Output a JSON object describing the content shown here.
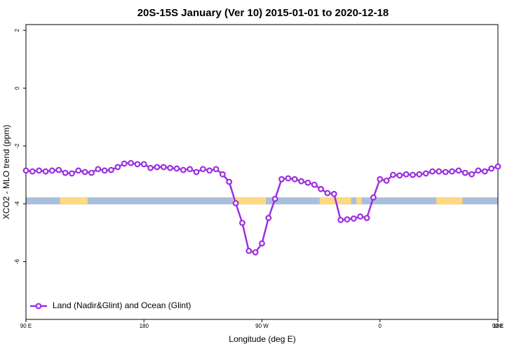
{
  "chart_data": {
    "type": "line",
    "title": "20S-15S January (Ver 10)   2015-01-01 to 2020-12-18",
    "x_label": "Longitude (deg E)",
    "y_label": "XCO2 - MLO trend (ppm)",
    "xlim": [
      90,
      450
    ],
    "xticks": [
      {
        "value": 90,
        "label": "90 E"
      },
      180,
      {
        "value": 270,
        "label": "90 W"
      },
      {
        "value": 360,
        "label": "0"
      },
      {
        "value": 450,
        "label": "90 E"
      },
      {
        "value": 540,
        "label": "180"
      }
    ],
    "ylim": [
      -8,
      2.2
    ],
    "yticks": [
      2,
      0,
      -2,
      -4,
      -6
    ],
    "legend": "bottom-left",
    "x": [
      90,
      95,
      100,
      105,
      110,
      115,
      120,
      125,
      130,
      135,
      140,
      145,
      150,
      155,
      160,
      165,
      170,
      175,
      180,
      185,
      190,
      195,
      200,
      205,
      210,
      215,
      220,
      225,
      230,
      235,
      240,
      245,
      250,
      255,
      260,
      265,
      270,
      275,
      280,
      285,
      290,
      295,
      300,
      305,
      310,
      315,
      320,
      325,
      330,
      335,
      340,
      345,
      350,
      355,
      360,
      365,
      370,
      375,
      380,
      385,
      390,
      395,
      400,
      405,
      410,
      415,
      420,
      425,
      430,
      435,
      440,
      445,
      450
    ],
    "series": [
      {
        "name": "Land (Nadir&Glint) and Ocean (Glint)",
        "color": "#9b30e0",
        "values": [
          -2.85,
          -2.88,
          -2.85,
          -2.88,
          -2.85,
          -2.83,
          -2.93,
          -2.95,
          -2.85,
          -2.9,
          -2.93,
          -2.8,
          -2.85,
          -2.83,
          -2.73,
          -2.61,
          -2.59,
          -2.63,
          -2.63,
          -2.76,
          -2.73,
          -2.73,
          -2.76,
          -2.78,
          -2.83,
          -2.8,
          -2.9,
          -2.8,
          -2.85,
          -2.8,
          -2.98,
          -3.24,
          -3.98,
          -4.66,
          -5.63,
          -5.68,
          -5.37,
          -4.49,
          -3.83,
          -3.15,
          -3.12,
          -3.15,
          -3.22,
          -3.27,
          -3.34,
          -3.49,
          -3.63,
          -3.66,
          -4.56,
          -4.54,
          -4.51,
          -4.44,
          -4.49,
          -3.78,
          -3.15,
          -3.2,
          -3.0,
          -3.02,
          -2.98,
          -3.0,
          -2.98,
          -2.95,
          -2.88,
          -2.88,
          -2.9,
          -2.88,
          -2.85,
          -2.93,
          -2.98,
          -2.85,
          -2.88,
          -2.78,
          -2.71
        ]
      }
    ],
    "strip": {
      "y": -3.9,
      "color": "#a9bfdc",
      "land_color": "#ffd97f",
      "land_ranges": [
        [
          116,
          137
        ],
        [
          248,
          273
        ],
        [
          314,
          338
        ],
        [
          342,
          346
        ],
        [
          403,
          423
        ]
      ]
    }
  }
}
